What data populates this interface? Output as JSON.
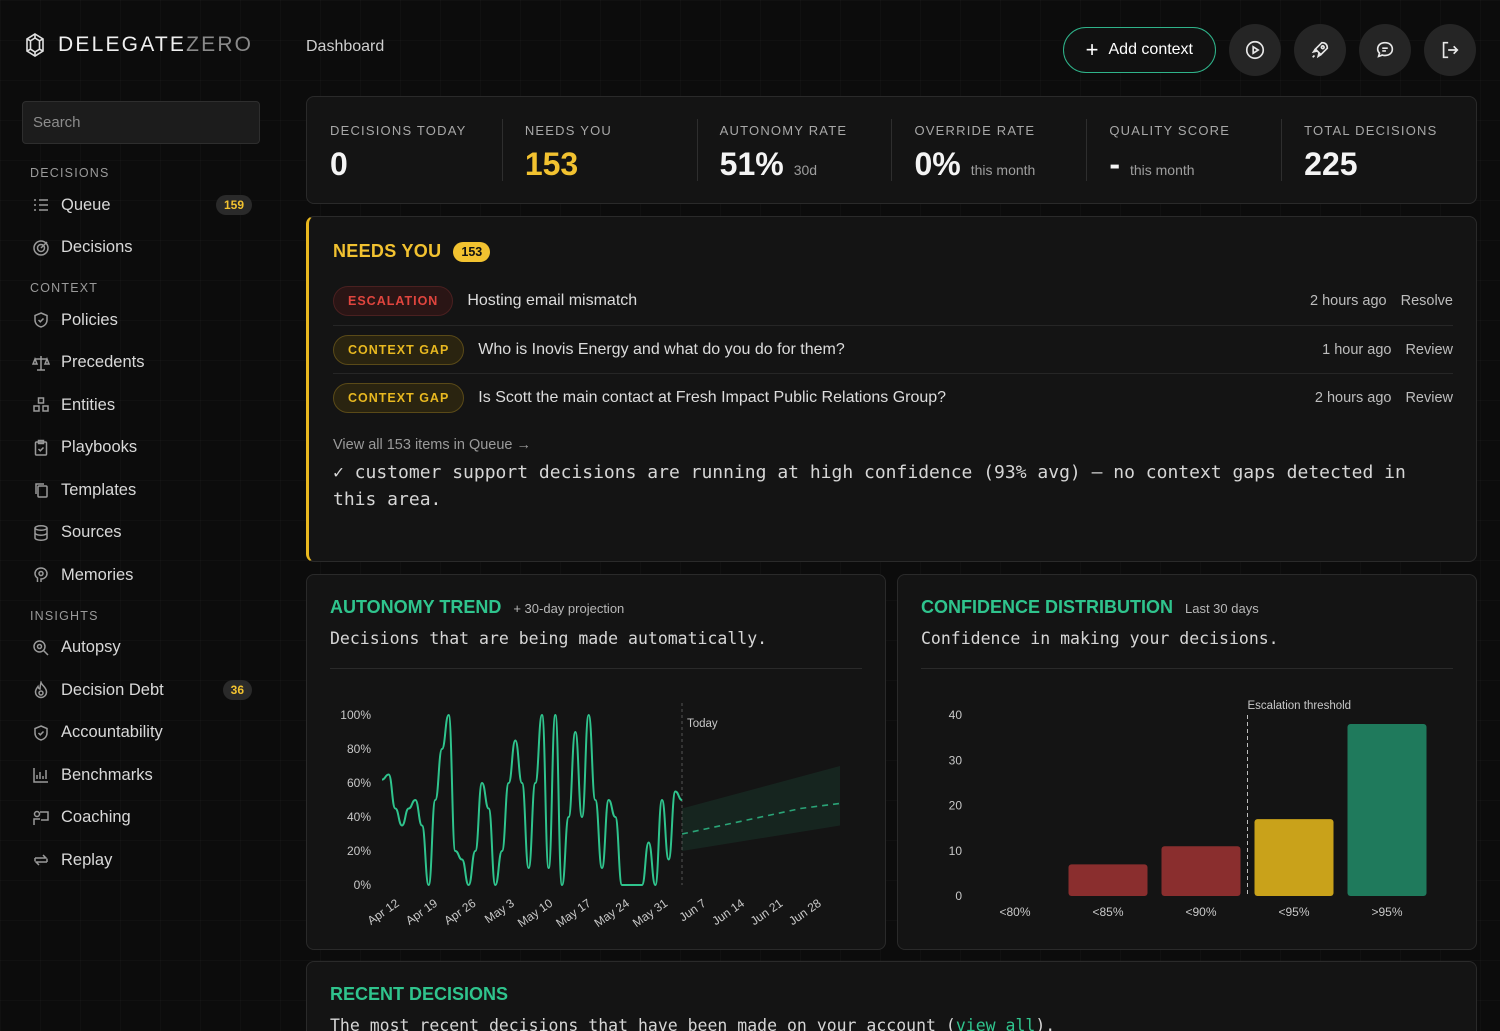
{
  "brand": {
    "name_primary": "DELEGATE",
    "name_secondary": "ZERO"
  },
  "breadcrumb": "Dashboard",
  "top_actions": {
    "add_context_label": "Add context"
  },
  "sidebar": {
    "search_placeholder": "Search",
    "sections": [
      {
        "title": "DECISIONS",
        "items": [
          {
            "label": "Queue",
            "icon": "list-icon",
            "badge": "159"
          },
          {
            "label": "Decisions",
            "icon": "target-icon"
          }
        ]
      },
      {
        "title": "CONTEXT",
        "items": [
          {
            "label": "Policies",
            "icon": "shield-icon"
          },
          {
            "label": "Precedents",
            "icon": "scale-icon"
          },
          {
            "label": "Entities",
            "icon": "entities-icon"
          },
          {
            "label": "Playbooks",
            "icon": "clipboard-icon"
          },
          {
            "label": "Templates",
            "icon": "copy-icon"
          },
          {
            "label": "Sources",
            "icon": "database-icon"
          },
          {
            "label": "Memories",
            "icon": "brain-icon"
          }
        ]
      },
      {
        "title": "INSIGHTS",
        "items": [
          {
            "label": "Autopsy",
            "icon": "magnifier-icon"
          },
          {
            "label": "Decision Debt",
            "icon": "flame-icon",
            "badge": "36"
          },
          {
            "label": "Accountability",
            "icon": "shield-check-icon"
          },
          {
            "label": "Benchmarks",
            "icon": "bar-chart-icon"
          },
          {
            "label": "Coaching",
            "icon": "coaching-icon"
          },
          {
            "label": "Replay",
            "icon": "replay-icon"
          }
        ]
      }
    ]
  },
  "stats": [
    {
      "label": "DECISIONS TODAY",
      "value": "0",
      "sub": ""
    },
    {
      "label": "NEEDS YOU",
      "value": "153",
      "sub": "",
      "accent": "#f2c230"
    },
    {
      "label": "AUTONOMY RATE",
      "value": "51%",
      "sub": "30d"
    },
    {
      "label": "OVERRIDE RATE",
      "value": "0%",
      "sub": "this month"
    },
    {
      "label": "QUALITY SCORE",
      "value": "-",
      "sub": "this month"
    },
    {
      "label": "TOTAL DECISIONS",
      "value": "225",
      "sub": ""
    }
  ],
  "needs_you": {
    "title": "NEEDS YOU",
    "badge": "153",
    "items": [
      {
        "tag": "ESCALATION",
        "kind": "esc",
        "text": "Hosting email mismatch",
        "time": "2 hours ago",
        "action": "Resolve"
      },
      {
        "tag": "CONTEXT GAP",
        "kind": "gap",
        "text": "Who is Inovis Energy and what do you do for them?",
        "time": "1 hour ago",
        "action": "Review"
      },
      {
        "tag": "CONTEXT GAP",
        "kind": "gap",
        "text": "Is Scott the main contact at Fresh Impact Public Relations Group?",
        "time": "2 hours ago",
        "action": "Review"
      }
    ],
    "view_all": "View all 153 items in Queue →",
    "note": "✓ customer support decisions are running at high confidence (93% avg) — no context gaps detected in this area."
  },
  "autonomy_trend": {
    "title": "AUTONOMY TREND",
    "subtitle": "+ 30-day projection",
    "description": "Decisions that are being made automatically.",
    "today_label": "Today"
  },
  "confidence_distribution": {
    "title": "CONFIDENCE DISTRIBUTION",
    "subtitle": "Last 30 days",
    "description": "Confidence in making your decisions.",
    "threshold_label": "Escalation threshold"
  },
  "recent_decisions": {
    "title": "RECENT DECISIONS",
    "description_prefix": "The most recent decisions that have been made on your account (",
    "link": "view all",
    "description_suffix": ")."
  },
  "chart_data": [
    {
      "type": "line",
      "ylim": [
        0,
        100
      ],
      "yticks": [
        "100%",
        "80%",
        "60%",
        "40%",
        "20%",
        "0%"
      ],
      "xticks": [
        "Apr 12",
        "Apr 19",
        "Apr 26",
        "May 3",
        "May 10",
        "May 17",
        "May 24",
        "May 31",
        "Jun 7",
        "Jun 14",
        "Jun 21",
        "Jun 28"
      ],
      "series": [
        {
          "values": [
            62,
            65,
            45,
            35,
            45,
            50,
            35,
            0,
            50,
            80,
            100,
            20,
            15,
            0,
            20,
            60,
            45,
            0,
            20,
            60,
            85,
            60,
            10,
            60,
            100,
            10,
            100,
            0,
            40,
            90,
            40,
            100,
            50,
            10,
            50,
            40,
            0,
            0,
            0,
            0,
            25,
            0,
            50,
            15,
            55,
            50
          ]
        },
        {
          "values": [
            30,
            35,
            40,
            45,
            48
          ]
        }
      ],
      "projection_band": [
        [
          20,
          45
        ],
        [
          35,
          70
        ]
      ]
    },
    {
      "type": "bar",
      "categories": [
        "<80%",
        "<85%",
        "<90%",
        "<95%",
        ">95%"
      ],
      "values": [
        0,
        7,
        11,
        17,
        38
      ],
      "ylim": [
        0,
        40
      ],
      "yticks": [
        "40",
        "30",
        "20",
        "10",
        "0"
      ],
      "colors": [
        "#8a2e2e",
        "#8a2e2e",
        "#8a2e2e",
        "#c9a21a",
        "#1f7a5c"
      ]
    }
  ]
}
